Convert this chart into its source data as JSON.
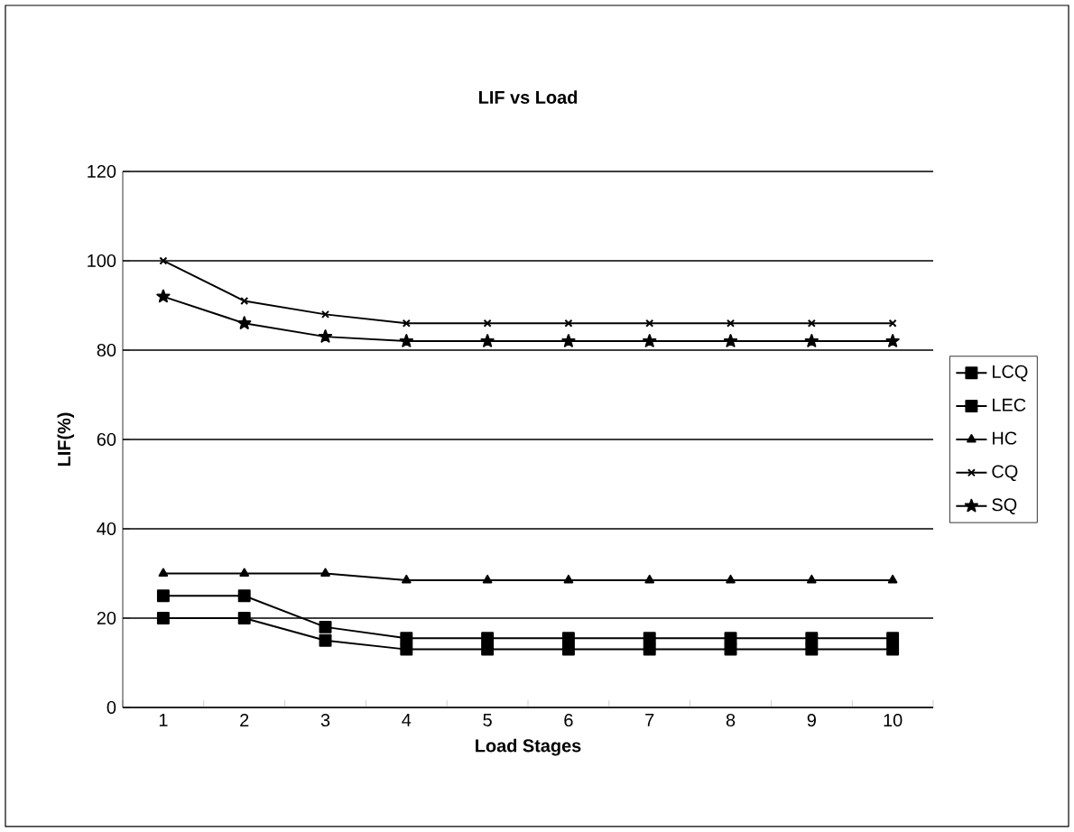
{
  "chart_data": {
    "type": "line",
    "title": "LIF vs Load",
    "xlabel": "Load Stages",
    "ylabel": "LIF(%)",
    "categories": [
      "1",
      "2",
      "3",
      "4",
      "5",
      "6",
      "7",
      "8",
      "9",
      "10"
    ],
    "ylim": [
      0,
      120
    ],
    "yticks": [
      0,
      20,
      40,
      60,
      80,
      100,
      120
    ],
    "grid": "y",
    "legend": "right",
    "series": [
      {
        "name": "LCQ",
        "color": "#000000",
        "marker": "square",
        "values": [
          20,
          20,
          15,
          13,
          13,
          13,
          13,
          13,
          13,
          13
        ]
      },
      {
        "name": "LEC",
        "color": "#000000",
        "marker": "square",
        "values": [
          25,
          25,
          18,
          15.5,
          15.5,
          15.5,
          15.5,
          15.5,
          15.5,
          15.5
        ]
      },
      {
        "name": "HC",
        "color": "#000000",
        "marker": "triangle",
        "values": [
          30,
          30,
          30,
          28.5,
          28.5,
          28.5,
          28.5,
          28.5,
          28.5,
          28.5
        ]
      },
      {
        "name": "CQ",
        "color": "#000000",
        "marker": "cross",
        "values": [
          100,
          91,
          88,
          86,
          86,
          86,
          86,
          86,
          86,
          86
        ]
      },
      {
        "name": "SQ",
        "color": "#000000",
        "marker": "star",
        "values": [
          92,
          86,
          83,
          82,
          82,
          82,
          82,
          82,
          82,
          82
        ]
      }
    ]
  }
}
